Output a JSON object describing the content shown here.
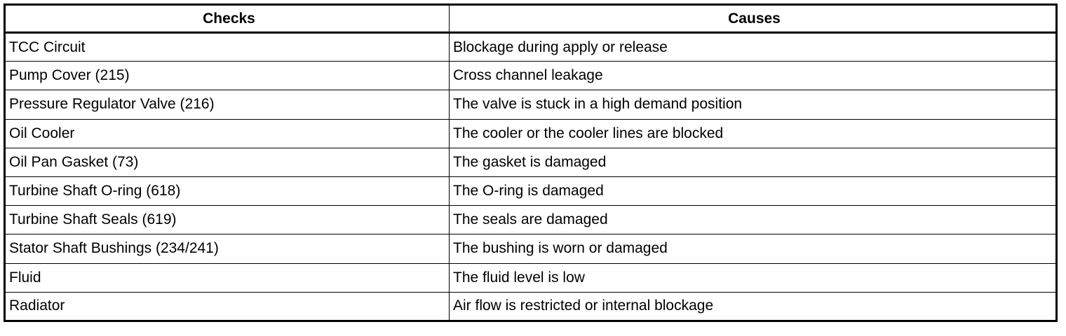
{
  "table": {
    "headers": [
      "Checks",
      "Causes"
    ],
    "rows": [
      [
        "TCC Circuit",
        "Blockage during apply or release"
      ],
      [
        "Pump Cover (215)",
        "Cross channel leakage"
      ],
      [
        "Pressure Regulator Valve (216)",
        "The valve is stuck in a high demand position"
      ],
      [
        "Oil Cooler",
        "The cooler or the cooler lines are blocked"
      ],
      [
        "Oil Pan Gasket (73)",
        "The gasket is damaged"
      ],
      [
        "Turbine Shaft O-ring (618)",
        "The O-ring is damaged"
      ],
      [
        "Turbine Shaft Seals (619)",
        "The seals are damaged"
      ],
      [
        "Stator Shaft Bushings (234/241)",
        "The bushing is worn or damaged"
      ],
      [
        "Fluid",
        "The fluid level is low"
      ],
      [
        "Radiator",
        "Air flow is restricted or internal blockage"
      ]
    ]
  }
}
